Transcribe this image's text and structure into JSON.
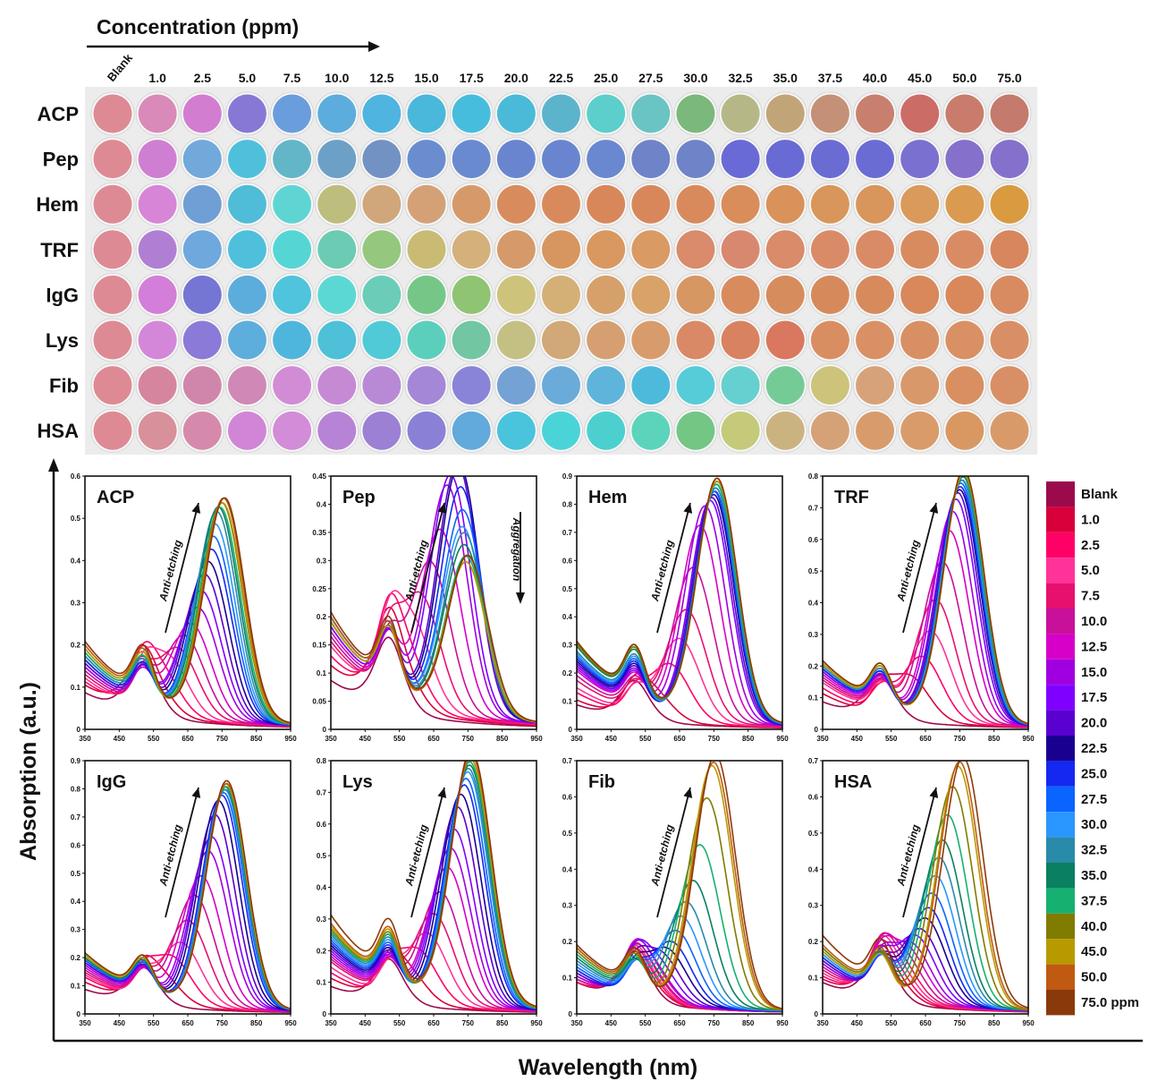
{
  "conc_title": "Concentration (ppm)",
  "conc_labels": [
    "Blank",
    "1.0",
    "2.5",
    "5.0",
    "7.5",
    "10.0",
    "12.5",
    "15.0",
    "17.5",
    "20.0",
    "22.5",
    "25.0",
    "27.5",
    "30.0",
    "32.5",
    "35.0",
    "37.5",
    "40.0",
    "45.0",
    "50.0",
    "75.0"
  ],
  "row_labels": [
    "ACP",
    "Pep",
    "Hem",
    "TRF",
    "IgG",
    "Lys",
    "Fib",
    "HSA"
  ],
  "well_colors": [
    [
      "#de8a94",
      "#d98ab8",
      "#d27dd0",
      "#8878d6",
      "#6a9ddc",
      "#5caddd",
      "#4fb4df",
      "#4ab8da",
      "#47bddd",
      "#4bbad8",
      "#5cb4cc",
      "#5ccfcc",
      "#6ac4c4",
      "#7bb87b",
      "#b5b886",
      "#c2a479",
      "#c59078",
      "#c97f6d",
      "#cc6c66",
      "#c97c6c",
      "#c47a6d"
    ],
    [
      "#de8a94",
      "#cf7fd2",
      "#70a9da",
      "#4fc0dc",
      "#62b6c8",
      "#6da0c7",
      "#7392c4",
      "#6a8dd0",
      "#6a8ad0",
      "#6a85d0",
      "#6a85d0",
      "#6a88d0",
      "#6f83c8",
      "#6f84c8",
      "#6a6ad6",
      "#6a6ad4",
      "#6b6bd4",
      "#6b6bd4",
      "#7a70cf",
      "#8570cc",
      "#8570cc"
    ],
    [
      "#de8a94",
      "#d785d6",
      "#6f9fd5",
      "#4fbcd8",
      "#5fd5d3",
      "#bdbd7e",
      "#cfa77a",
      "#d4a177",
      "#d69a6a",
      "#d88c5e",
      "#d98a5c",
      "#d8875b",
      "#d8875b",
      "#d98a5d",
      "#d88d5b",
      "#d8925a",
      "#d8965a",
      "#d8955c",
      "#d99a5c",
      "#da9a50",
      "#d99a40"
    ],
    [
      "#de8a94",
      "#b07fd4",
      "#6ea8dc",
      "#4ec0dc",
      "#55d6d4",
      "#6ccbb3",
      "#96c77e",
      "#c9bb74",
      "#d4b07b",
      "#d69a6a",
      "#d7965f",
      "#d89860",
      "#d99a63",
      "#d98b6b",
      "#d98870",
      "#d98b6a",
      "#d98b68",
      "#d98b66",
      "#d98b60",
      "#d98c63",
      "#d8865e"
    ],
    [
      "#de8a94",
      "#d37ed8",
      "#7575d4",
      "#5caddc",
      "#4fc4dc",
      "#5cd8d4",
      "#6bcdb7",
      "#76c787",
      "#8fc473",
      "#cec37b",
      "#d4b076",
      "#d6a06a",
      "#d9a268",
      "#d69763",
      "#d88c5e",
      "#d68c5d",
      "#d68a5c",
      "#d78a5c",
      "#d8885b",
      "#d8885b",
      "#d88b60"
    ],
    [
      "#de8a94",
      "#d487d9",
      "#8c7ad8",
      "#5daedc",
      "#4eb6dc",
      "#4ec0d8",
      "#4fcad6",
      "#5ccfbc",
      "#72c6a2",
      "#c4c083",
      "#d1a878",
      "#d59f72",
      "#d89c6c",
      "#d98965",
      "#d98260",
      "#d9785e",
      "#d98e62",
      "#d99064",
      "#d98f64",
      "#d99064",
      "#d98f66"
    ],
    [
      "#de8a94",
      "#d5869e",
      "#d086ab",
      "#d088b6",
      "#d28cd6",
      "#c68ad4",
      "#b88ad6",
      "#a487d6",
      "#8a84d8",
      "#74a2d4",
      "#6aabd9",
      "#5eb4da",
      "#4dbadc",
      "#55ccd8",
      "#66d0d0",
      "#75cb96",
      "#cdc37a",
      "#d7a27a",
      "#d9986a",
      "#d98f62",
      "#d98f66"
    ],
    [
      "#de8a94",
      "#d8909a",
      "#d68aab",
      "#d185d6",
      "#d28cd8",
      "#b783d6",
      "#9b80d4",
      "#8a80d6",
      "#62a9dc",
      "#4ac3dc",
      "#4ad4d8",
      "#4cd0cf",
      "#5cd4bc",
      "#74c685",
      "#c4ca79",
      "#cbb380",
      "#d5a278",
      "#d89c6c",
      "#d99b6a",
      "#d99862",
      "#d99a6a"
    ]
  ],
  "y_axis_title": "Absorption (a.u.)",
  "x_axis_title": "Wavelength (nm)",
  "anti_etching_label": "Anti-etching",
  "aggregation_label": "Aggregation",
  "legend": {
    "labels": [
      "Blank",
      "1.0",
      "2.5",
      "5.0",
      "7.5",
      "10.0",
      "12.5",
      "15.0",
      "17.5",
      "20.0",
      "22.5",
      "25.0",
      "27.5",
      "30.0",
      "32.5",
      "35.0",
      "37.5",
      "40.0",
      "45.0",
      "50.0",
      "75.0 ppm"
    ],
    "colors": [
      "#9c0a4e",
      "#d8003a",
      "#ff0066",
      "#ff3399",
      "#e8106e",
      "#c8109a",
      "#d600c8",
      "#a000e0",
      "#8000ff",
      "#5a00d0",
      "#1a0090",
      "#1428f0",
      "#0a64ff",
      "#2a96ff",
      "#2a8aaa",
      "#0a8060",
      "#16b070",
      "#807c00",
      "#b89a00",
      "#c05a12",
      "#8a3a0a"
    ]
  },
  "chart_data": [
    {
      "type": "line",
      "title": "ACP",
      "x": [
        350,
        450,
        550,
        650,
        750,
        850,
        950
      ],
      "ylim": [
        0,
        0.6
      ],
      "yticks": [
        0,
        0.1,
        0.2,
        0.3,
        0.4,
        0.5,
        0.6
      ],
      "xticks": [
        350,
        450,
        550,
        650,
        750,
        850,
        950
      ],
      "annotation": "Anti-etching",
      "base_peak": [
        520,
        0.09
      ],
      "lambda_max": [
        520,
        530,
        560,
        590,
        620,
        640,
        660,
        680,
        690,
        700,
        710,
        720,
        725,
        730,
        735,
        740,
        745,
        750,
        752,
        755,
        758
      ],
      "a_max": [
        0.09,
        0.1,
        0.12,
        0.14,
        0.16,
        0.19,
        0.22,
        0.26,
        0.3,
        0.34,
        0.37,
        0.4,
        0.43,
        0.46,
        0.49,
        0.5,
        0.5,
        0.51,
        0.51,
        0.52,
        0.52
      ],
      "baseline": [
        0.1,
        0.12,
        0.13,
        0.14,
        0.15,
        0.16,
        0.17,
        0.17,
        0.18,
        0.18,
        0.19,
        0.19,
        0.2,
        0.2,
        0.2,
        0.21,
        0.21,
        0.22,
        0.22,
        0.23,
        0.24
      ]
    },
    {
      "type": "line",
      "title": "Pep",
      "x": [
        350,
        450,
        550,
        650,
        750,
        850,
        950
      ],
      "ylim": [
        0,
        0.45
      ],
      "yticks": [
        0,
        0.05,
        0.1,
        0.15,
        0.2,
        0.25,
        0.3,
        0.35,
        0.4,
        0.45
      ],
      "xticks": [
        350,
        450,
        550,
        650,
        750,
        850,
        950
      ],
      "annotation": "Anti-etching",
      "annotation2": "Aggregation",
      "base_peak": [
        525,
        0.08
      ],
      "lambda_max": [
        520,
        530,
        550,
        580,
        610,
        640,
        670,
        690,
        700,
        720,
        725,
        730,
        735,
        735,
        740,
        740,
        745,
        745,
        745,
        750,
        750
      ],
      "a_max": [
        0.08,
        0.11,
        0.13,
        0.16,
        0.2,
        0.26,
        0.32,
        0.4,
        0.42,
        0.44,
        0.44,
        0.4,
        0.36,
        0.33,
        0.32,
        0.3,
        0.28,
        0.27,
        0.27,
        0.28,
        0.28
      ],
      "baseline": [
        0.1,
        0.13,
        0.15,
        0.17,
        0.18,
        0.19,
        0.2,
        0.21,
        0.21,
        0.22,
        0.22,
        0.23,
        0.23,
        0.23,
        0.23,
        0.22,
        0.22,
        0.22,
        0.22,
        0.23,
        0.24
      ]
    },
    {
      "type": "line",
      "title": "Hem",
      "x": [
        350,
        450,
        550,
        650,
        750,
        850,
        950
      ],
      "ylim": [
        0,
        0.9
      ],
      "yticks": [
        0,
        0.1,
        0.2,
        0.3,
        0.4,
        0.5,
        0.6,
        0.7,
        0.8,
        0.9
      ],
      "xticks": [
        350,
        450,
        550,
        650,
        750,
        850,
        950
      ],
      "annotation": "Anti-etching",
      "base_peak": [
        525,
        0.09
      ],
      "lambda_max": [
        520,
        560,
        620,
        650,
        670,
        690,
        710,
        725,
        740,
        745,
        750,
        752,
        754,
        756,
        756,
        758,
        758,
        760,
        760,
        760,
        760
      ],
      "a_max": [
        0.09,
        0.12,
        0.2,
        0.29,
        0.39,
        0.54,
        0.69,
        0.76,
        0.78,
        0.79,
        0.8,
        0.81,
        0.81,
        0.82,
        0.82,
        0.83,
        0.83,
        0.84,
        0.84,
        0.85,
        0.85
      ],
      "baseline": [
        0.1,
        0.12,
        0.15,
        0.17,
        0.2,
        0.22,
        0.24,
        0.25,
        0.26,
        0.27,
        0.28,
        0.29,
        0.3,
        0.31,
        0.32,
        0.34,
        0.35,
        0.35,
        0.36,
        0.36,
        0.36
      ]
    },
    {
      "type": "line",
      "title": "TRF",
      "x": [
        350,
        450,
        550,
        650,
        750,
        850,
        950
      ],
      "ylim": [
        0,
        0.8
      ],
      "yticks": [
        0,
        0.1,
        0.2,
        0.3,
        0.4,
        0.5,
        0.6,
        0.7,
        0.8
      ],
      "xticks": [
        350,
        450,
        550,
        650,
        750,
        850,
        950
      ],
      "annotation": "Anti-etching",
      "base_peak": [
        525,
        0.09
      ],
      "lambda_max": [
        520,
        600,
        640,
        665,
        680,
        700,
        720,
        730,
        740,
        745,
        750,
        752,
        754,
        756,
        758,
        760,
        760,
        762,
        762,
        762,
        762
      ],
      "a_max": [
        0.09,
        0.14,
        0.2,
        0.28,
        0.38,
        0.5,
        0.6,
        0.66,
        0.7,
        0.72,
        0.73,
        0.74,
        0.75,
        0.76,
        0.76,
        0.77,
        0.78,
        0.78,
        0.78,
        0.79,
        0.79
      ],
      "baseline": [
        0.1,
        0.13,
        0.15,
        0.17,
        0.18,
        0.19,
        0.2,
        0.21,
        0.21,
        0.22,
        0.22,
        0.22,
        0.23,
        0.23,
        0.23,
        0.24,
        0.24,
        0.24,
        0.24,
        0.25,
        0.25
      ]
    },
    {
      "type": "line",
      "title": "IgG",
      "x": [
        350,
        450,
        550,
        650,
        750,
        850,
        950
      ],
      "ylim": [
        0,
        0.9
      ],
      "yticks": [
        0,
        0.1,
        0.2,
        0.3,
        0.4,
        0.5,
        0.6,
        0.7,
        0.8,
        0.9
      ],
      "xticks": [
        350,
        450,
        550,
        650,
        750,
        850,
        950
      ],
      "annotation": "Anti-etching",
      "base_peak": [
        520,
        0.09
      ],
      "lambda_max": [
        520,
        560,
        600,
        630,
        650,
        670,
        690,
        710,
        720,
        730,
        740,
        750,
        755,
        758,
        760,
        760,
        762,
        762,
        762,
        764,
        764
      ],
      "a_max": [
        0.09,
        0.12,
        0.17,
        0.22,
        0.3,
        0.39,
        0.46,
        0.55,
        0.6,
        0.68,
        0.73,
        0.75,
        0.76,
        0.77,
        0.77,
        0.78,
        0.78,
        0.79,
        0.79,
        0.79,
        0.8
      ],
      "baseline": [
        0.1,
        0.13,
        0.15,
        0.16,
        0.17,
        0.18,
        0.19,
        0.2,
        0.21,
        0.21,
        0.22,
        0.22,
        0.22,
        0.23,
        0.23,
        0.23,
        0.24,
        0.24,
        0.24,
        0.25,
        0.25
      ]
    },
    {
      "type": "line",
      "title": "Lys",
      "x": [
        350,
        450,
        550,
        650,
        750,
        850,
        950
      ],
      "ylim": [
        0,
        0.8
      ],
      "yticks": [
        0,
        0.1,
        0.2,
        0.3,
        0.4,
        0.5,
        0.6,
        0.7,
        0.8
      ],
      "xticks": [
        350,
        450,
        550,
        650,
        750,
        850,
        950
      ],
      "annotation": "Anti-etching",
      "base_peak": [
        520,
        0.09
      ],
      "lambda_max": [
        520,
        560,
        600,
        630,
        650,
        670,
        690,
        700,
        710,
        720,
        730,
        740,
        745,
        750,
        752,
        755,
        756,
        758,
        758,
        760,
        760
      ],
      "a_max": [
        0.09,
        0.12,
        0.17,
        0.22,
        0.28,
        0.35,
        0.43,
        0.49,
        0.55,
        0.62,
        0.66,
        0.69,
        0.71,
        0.73,
        0.74,
        0.75,
        0.76,
        0.77,
        0.77,
        0.78,
        0.79
      ],
      "baseline": [
        0.1,
        0.13,
        0.15,
        0.17,
        0.19,
        0.2,
        0.21,
        0.22,
        0.23,
        0.24,
        0.25,
        0.26,
        0.27,
        0.28,
        0.29,
        0.3,
        0.3,
        0.31,
        0.32,
        0.33,
        0.36
      ]
    },
    {
      "type": "line",
      "title": "Fib",
      "x": [
        350,
        450,
        550,
        650,
        750,
        850,
        950
      ],
      "ylim": [
        0,
        0.7
      ],
      "yticks": [
        0,
        0.1,
        0.2,
        0.3,
        0.4,
        0.5,
        0.6,
        0.7
      ],
      "xticks": [
        350,
        450,
        550,
        650,
        750,
        850,
        950
      ],
      "annotation": "Anti-etching",
      "base_peak": [
        520,
        0.09
      ],
      "lambda_max": [
        520,
        525,
        530,
        535,
        540,
        545,
        550,
        555,
        570,
        590,
        610,
        625,
        640,
        655,
        670,
        690,
        710,
        730,
        745,
        750,
        755
      ],
      "a_max": [
        0.09,
        0.09,
        0.1,
        0.1,
        0.11,
        0.11,
        0.12,
        0.12,
        0.13,
        0.14,
        0.15,
        0.17,
        0.2,
        0.24,
        0.28,
        0.34,
        0.44,
        0.57,
        0.66,
        0.67,
        0.69
      ],
      "baseline": [
        0.1,
        0.1,
        0.1,
        0.11,
        0.11,
        0.11,
        0.12,
        0.12,
        0.13,
        0.13,
        0.14,
        0.14,
        0.15,
        0.16,
        0.17,
        0.18,
        0.19,
        0.2,
        0.21,
        0.21,
        0.22
      ]
    },
    {
      "type": "line",
      "title": "HSA",
      "x": [
        350,
        450,
        550,
        650,
        750,
        850,
        950
      ],
      "ylim": [
        0,
        0.7
      ],
      "yticks": [
        0,
        0.1,
        0.2,
        0.3,
        0.4,
        0.5,
        0.6,
        0.7
      ],
      "xticks": [
        350,
        450,
        550,
        650,
        750,
        850,
        950
      ],
      "annotation": "Anti-etching",
      "base_peak": [
        520,
        0.09
      ],
      "lambda_max": [
        520,
        530,
        540,
        550,
        560,
        575,
        590,
        605,
        620,
        635,
        650,
        660,
        670,
        680,
        690,
        700,
        715,
        730,
        745,
        750,
        760
      ],
      "a_max": [
        0.09,
        0.1,
        0.11,
        0.12,
        0.13,
        0.14,
        0.15,
        0.16,
        0.18,
        0.2,
        0.23,
        0.26,
        0.3,
        0.35,
        0.4,
        0.45,
        0.52,
        0.6,
        0.66,
        0.67,
        0.68
      ],
      "baseline": [
        0.1,
        0.11,
        0.12,
        0.13,
        0.14,
        0.15,
        0.16,
        0.16,
        0.17,
        0.17,
        0.18,
        0.18,
        0.19,
        0.19,
        0.2,
        0.2,
        0.21,
        0.21,
        0.2,
        0.22,
        0.25
      ]
    }
  ]
}
